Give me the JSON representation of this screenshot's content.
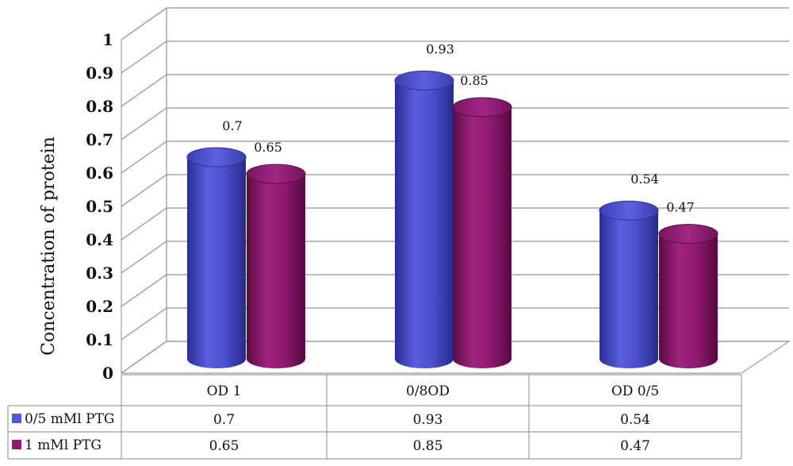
{
  "chart_data": {
    "type": "bar",
    "title": "",
    "xlabel": "",
    "ylabel": "Concentration of protein",
    "ylim": [
      0,
      1
    ],
    "yticks": [
      "0",
      "0.1",
      "0.2",
      "0.3",
      "0.4",
      "0.5",
      "0.6",
      "0.7",
      "0.8",
      "0.9",
      "1"
    ],
    "grid": true,
    "categories": [
      "OD 1",
      "0/8OD",
      "OD 0/5"
    ],
    "series": [
      {
        "name": "0/5 mMl PTG",
        "color": "#4f52c9",
        "values": [
          0.7,
          0.93,
          0.54
        ],
        "labels": [
          "0.7",
          "0.93",
          "0.54"
        ]
      },
      {
        "name": "1 mMl PTG",
        "color": "#8e1a6a",
        "values": [
          0.65,
          0.85,
          0.47
        ],
        "labels": [
          "0.65",
          "0.85",
          "0.47"
        ]
      }
    ],
    "data_table": true
  }
}
